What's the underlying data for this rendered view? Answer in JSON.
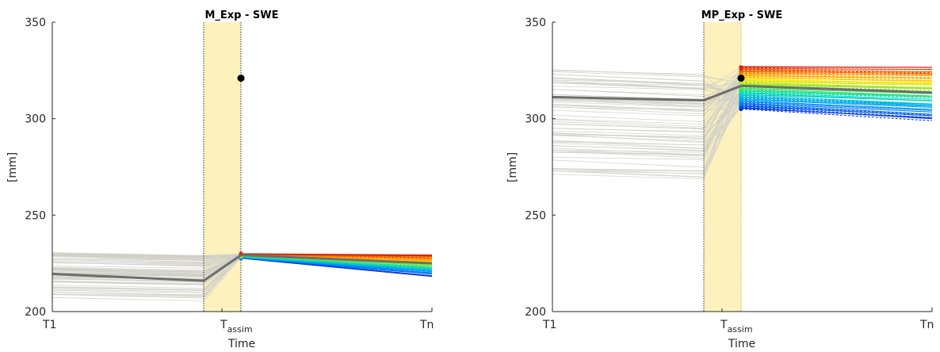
{
  "chart_data": [
    {
      "type": "line",
      "title": "M_Exp - SWE",
      "xlabel": "Time",
      "ylabel": "[mm]",
      "x_ticks": [
        {
          "main": "T1",
          "sub": ""
        },
        {
          "main": "T",
          "sub": "assim"
        },
        {
          "main": "Tn",
          "sub": ""
        }
      ],
      "y_ticks": [
        200,
        250,
        300,
        350
      ],
      "ylim": [
        200,
        350
      ],
      "grid": false,
      "assim_window_color": "#fdf1bd",
      "observation": {
        "y": 321
      },
      "mean_prior": [
        219.5,
        216.0
      ],
      "mean_posterior": [
        229.3,
        225.0
      ],
      "prior_band": {
        "t1_min": 207,
        "t1_max": 231,
        "ta_min": 201,
        "ta_max": 229
      },
      "posterior_band": {
        "start_min": 227.6,
        "start_max": 230.0,
        "end_min": 218.5,
        "end_max": 229.0
      }
    },
    {
      "type": "line",
      "title": "MP_Exp - SWE",
      "xlabel": "Time",
      "ylabel": "[mm]",
      "x_ticks": [
        {
          "main": "T1",
          "sub": ""
        },
        {
          "main": "T",
          "sub": "assim"
        },
        {
          "main": "Tn",
          "sub": ""
        }
      ],
      "y_ticks": [
        200,
        250,
        300,
        350
      ],
      "ylim": [
        200,
        350
      ],
      "grid": false,
      "assim_window_color": "#fdf1bd",
      "observation": {
        "y": 321
      },
      "mean_prior": [
        311.2,
        309.5
      ],
      "mean_posterior": [
        317.0,
        313.5
      ],
      "prior_band": {
        "t1_min": 266,
        "t1_max": 327,
        "ta_min": 258,
        "ta_max": 326
      },
      "posterior_band": {
        "start_min": 305,
        "start_max": 327,
        "end_min": 299.5,
        "end_max": 326.5
      }
    }
  ]
}
